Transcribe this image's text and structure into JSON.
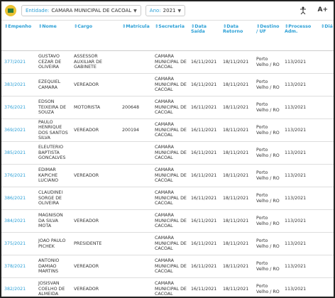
{
  "toolbar": {
    "entity_label": "Entidade:",
    "entity": "CAMARA MUNICIPAL DE CACOAL",
    "year_label": "Ano:",
    "year": "2021",
    "font_button": "A+"
  },
  "table": {
    "columns": [
      "Empenho",
      "Nome",
      "Cargo",
      "Matrícula",
      "Secretaria",
      "Data Saída",
      "Data Retorno",
      "Destino / UF",
      "Processo Adm.",
      "Diá"
    ],
    "rows": [
      [
        "377/2021",
        "GUSTAVO CEZAR DE OLIVEIRA",
        "ASSESSOR AUXILIAR DE GABINETE",
        null,
        "CAMARA MUNICIPAL DE CACOAL",
        "16/11/2021",
        "18/11/2021",
        "Porto Velho / RO",
        "113/2021"
      ],
      [
        "383/2021",
        "EZEQUIEL CAMARA",
        "VEREADOR",
        null,
        "CAMARA MUNICIPAL DE CACOAL",
        "16/11/2021",
        "18/11/2021",
        "Porto Velho / RO",
        "113/2021"
      ],
      [
        "376/2021",
        "EDSON TEIXEIRA DE SOUZA",
        "MOTORISTA",
        "200648",
        "CAMARA MUNICIPAL DE CACOAL",
        "16/11/2021",
        "18/11/2021",
        "Porto Velho / RO",
        "113/2021"
      ],
      [
        "369/2021",
        "PAULO HENRIQUE DOS SANTOS SILVA",
        "VEREADOR",
        "200194",
        "CAMARA MUNICIPAL DE CACOAL",
        "16/11/2021",
        "18/11/2021",
        "Porto Velho / RO",
        "113/2021"
      ],
      [
        "385/2021",
        "ELEUTERIO BAPTISTA GONCALVES",
        null,
        null,
        "CAMARA MUNICIPAL DE CACOAL",
        "16/11/2021",
        "18/11/2021",
        "Porto Velho / RO",
        "113/2021"
      ],
      [
        "376/2021",
        "EDIMAR KAPICHE LUCIANO",
        "VEREADOR",
        null,
        "CAMARA MUNICIPAL DE CACOAL",
        "16/11/2021",
        "18/11/2021",
        "Porto Velho / RO",
        "113/2021"
      ],
      [
        "386/2021",
        "CLAUDINEI SORGE DE OLIVEIRA",
        null,
        null,
        "CAMARA MUNICIPAL DE CACOAL",
        "16/11/2021",
        "18/11/2021",
        "Porto Velho / RO",
        "113/2021"
      ],
      [
        "384/2021",
        "MAGNISON DA SILVA MOTA",
        "VEREADOR",
        null,
        "CAMARA MUNICIPAL DE CACOAL",
        "16/11/2021",
        "18/11/2021",
        "Porto Velho / RO",
        "113/2021"
      ],
      [
        "375/2021",
        "JOAO PAULO PICHEK",
        "PRESIDENTE",
        null,
        "CAMARA MUNICIPAL DE CACOAL",
        "16/11/2021",
        "18/11/2021",
        "Porto Velho / RO",
        "113/2021"
      ],
      [
        "378/2021",
        "ANTONIO DAMIAO MARTINS",
        "VEREADOR",
        null,
        "CAMARA MUNICIPAL DE CACOAL",
        "16/11/2021",
        "18/11/2021",
        "Porto Velho / RO",
        "113/2021"
      ],
      [
        "382/2021",
        "JOSISVAN COELHO DE ALMEIDA",
        "VEREADOR",
        null,
        "CAMARA MUNICIPAL DE CACOAL",
        "16/11/2021",
        "18/11/2021",
        "Porto Velho / RO",
        "113/2021"
      ]
    ]
  }
}
